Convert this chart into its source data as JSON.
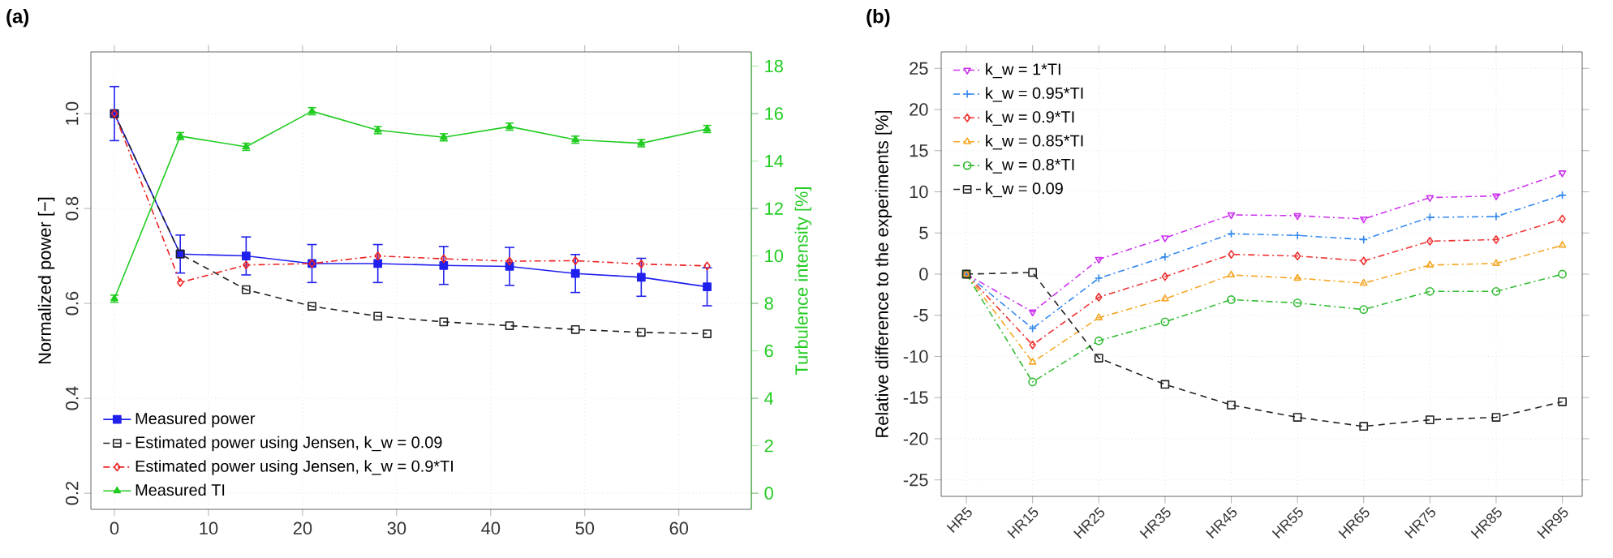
{
  "chart_data": [
    {
      "type": "line",
      "title": "(a)",
      "ylabel": "Normalized power [−]",
      "y2label": "Turbulence intensity [%]",
      "x": [
        0,
        7,
        14,
        21,
        28,
        35,
        42,
        49,
        56,
        63
      ],
      "xlim": [
        -2.5,
        67.7
      ],
      "xticks": [
        0,
        10,
        20,
        30,
        40,
        50,
        60
      ],
      "ylim": [
        0.166,
        1.13
      ],
      "yticks": [
        0.2,
        0.4,
        0.6,
        0.8,
        {
          "value": 1.0,
          "label": "1.0"
        }
      ],
      "y2lim": [
        -0.68,
        18.6
      ],
      "y2ticks": [
        0,
        2,
        4,
        6,
        8,
        10,
        12,
        14,
        16,
        18
      ],
      "grid": true,
      "legend": "bottom left",
      "series": [
        {
          "name": "Measured power",
          "color": "#2020ee",
          "marker": "square",
          "line_style": "solid",
          "values": [
            1.0,
            0.704,
            0.7,
            0.684,
            0.684,
            0.68,
            0.678,
            0.663,
            0.655,
            0.635
          ],
          "errors": [
            0.057,
            0.04,
            0.04,
            0.04,
            0.04,
            0.04,
            0.04,
            0.04,
            0.04,
            0.04
          ]
        },
        {
          "name": "Estimated power using Jensen, k_w = 0.09",
          "color": "#222222",
          "marker": "square",
          "line_style": "dashed",
          "values": [
            1.0,
            0.704,
            0.629,
            0.594,
            0.573,
            0.561,
            0.553,
            0.545,
            0.539,
            0.536
          ]
        },
        {
          "name": "Estimated power using Jensen, k_w = 0.9*TI",
          "color": "#ee2222",
          "marker": "diamond",
          "line_style": "dashdot",
          "values": [
            1.0,
            0.644,
            0.681,
            0.684,
            0.7,
            0.694,
            0.689,
            0.69,
            0.683,
            0.679
          ]
        },
        {
          "name": "Measured TI",
          "color": "#22cc22",
          "marker": "triangle",
          "line_style": "solid",
          "axis": "y2",
          "values": [
            8.2,
            15.05,
            14.6,
            16.1,
            15.3,
            15.0,
            15.45,
            14.9,
            14.75,
            15.35
          ],
          "errors": [
            0.15,
            0.15,
            0.15,
            0.15,
            0.15,
            0.15,
            0.15,
            0.15,
            0.15,
            0.15
          ]
        }
      ]
    },
    {
      "type": "line",
      "title": "(b)",
      "ylabel": "Relative difference to the experiments [%]",
      "categories": [
        "HR5",
        "HR15",
        "HR25",
        "HR35",
        "HR45",
        "HR55",
        "HR65",
        "HR75",
        "HR85",
        "HR95"
      ],
      "ylim": [
        -27,
        27
      ],
      "yticks": [
        -25,
        -20,
        -15,
        -10,
        -5,
        0,
        5,
        10,
        15,
        20,
        25
      ],
      "grid": true,
      "legend": "top left",
      "series": [
        {
          "name": "k_w = 1*TI",
          "color": "#cc33ee",
          "marker": "triangle_down",
          "line_style": "dashdot",
          "values": [
            0,
            -4.6,
            1.8,
            4.4,
            7.2,
            7.1,
            6.7,
            9.3,
            9.5,
            12.3
          ]
        },
        {
          "name": "k_w = 0.95*TI",
          "color": "#3388ee",
          "marker": "cross",
          "line_style": "dashdot",
          "values": [
            0,
            -6.6,
            -0.5,
            2.1,
            4.9,
            4.7,
            4.2,
            6.9,
            7.0,
            9.6
          ]
        },
        {
          "name": "k_w = 0.9*TI",
          "color": "#ee3333",
          "marker": "diamond",
          "line_style": "dashdot",
          "values": [
            0,
            -8.6,
            -2.8,
            -0.3,
            2.4,
            2.2,
            1.6,
            4.0,
            4.2,
            6.7
          ]
        },
        {
          "name": "k_w = 0.85*TI",
          "color": "#f5a623",
          "marker": "triangle",
          "line_style": "dashdot",
          "values": [
            0,
            -10.7,
            -5.3,
            -3.0,
            -0.1,
            -0.5,
            -1.1,
            1.1,
            1.3,
            3.5
          ]
        },
        {
          "name": "k_w = 0.8*TI",
          "color": "#33bb33",
          "marker": "circle",
          "line_style": "dashdot",
          "values": [
            0,
            -13.1,
            -8.1,
            -5.8,
            -3.1,
            -3.5,
            -4.3,
            -2.1,
            -2.1,
            0
          ]
        },
        {
          "name": "k_w = 0.09",
          "color": "#222222",
          "marker": "square",
          "line_style": "dashed",
          "values": [
            0,
            0.2,
            -10.2,
            -13.4,
            -15.9,
            -17.4,
            -18.5,
            -17.7,
            -17.4,
            -15.5
          ]
        }
      ]
    }
  ]
}
